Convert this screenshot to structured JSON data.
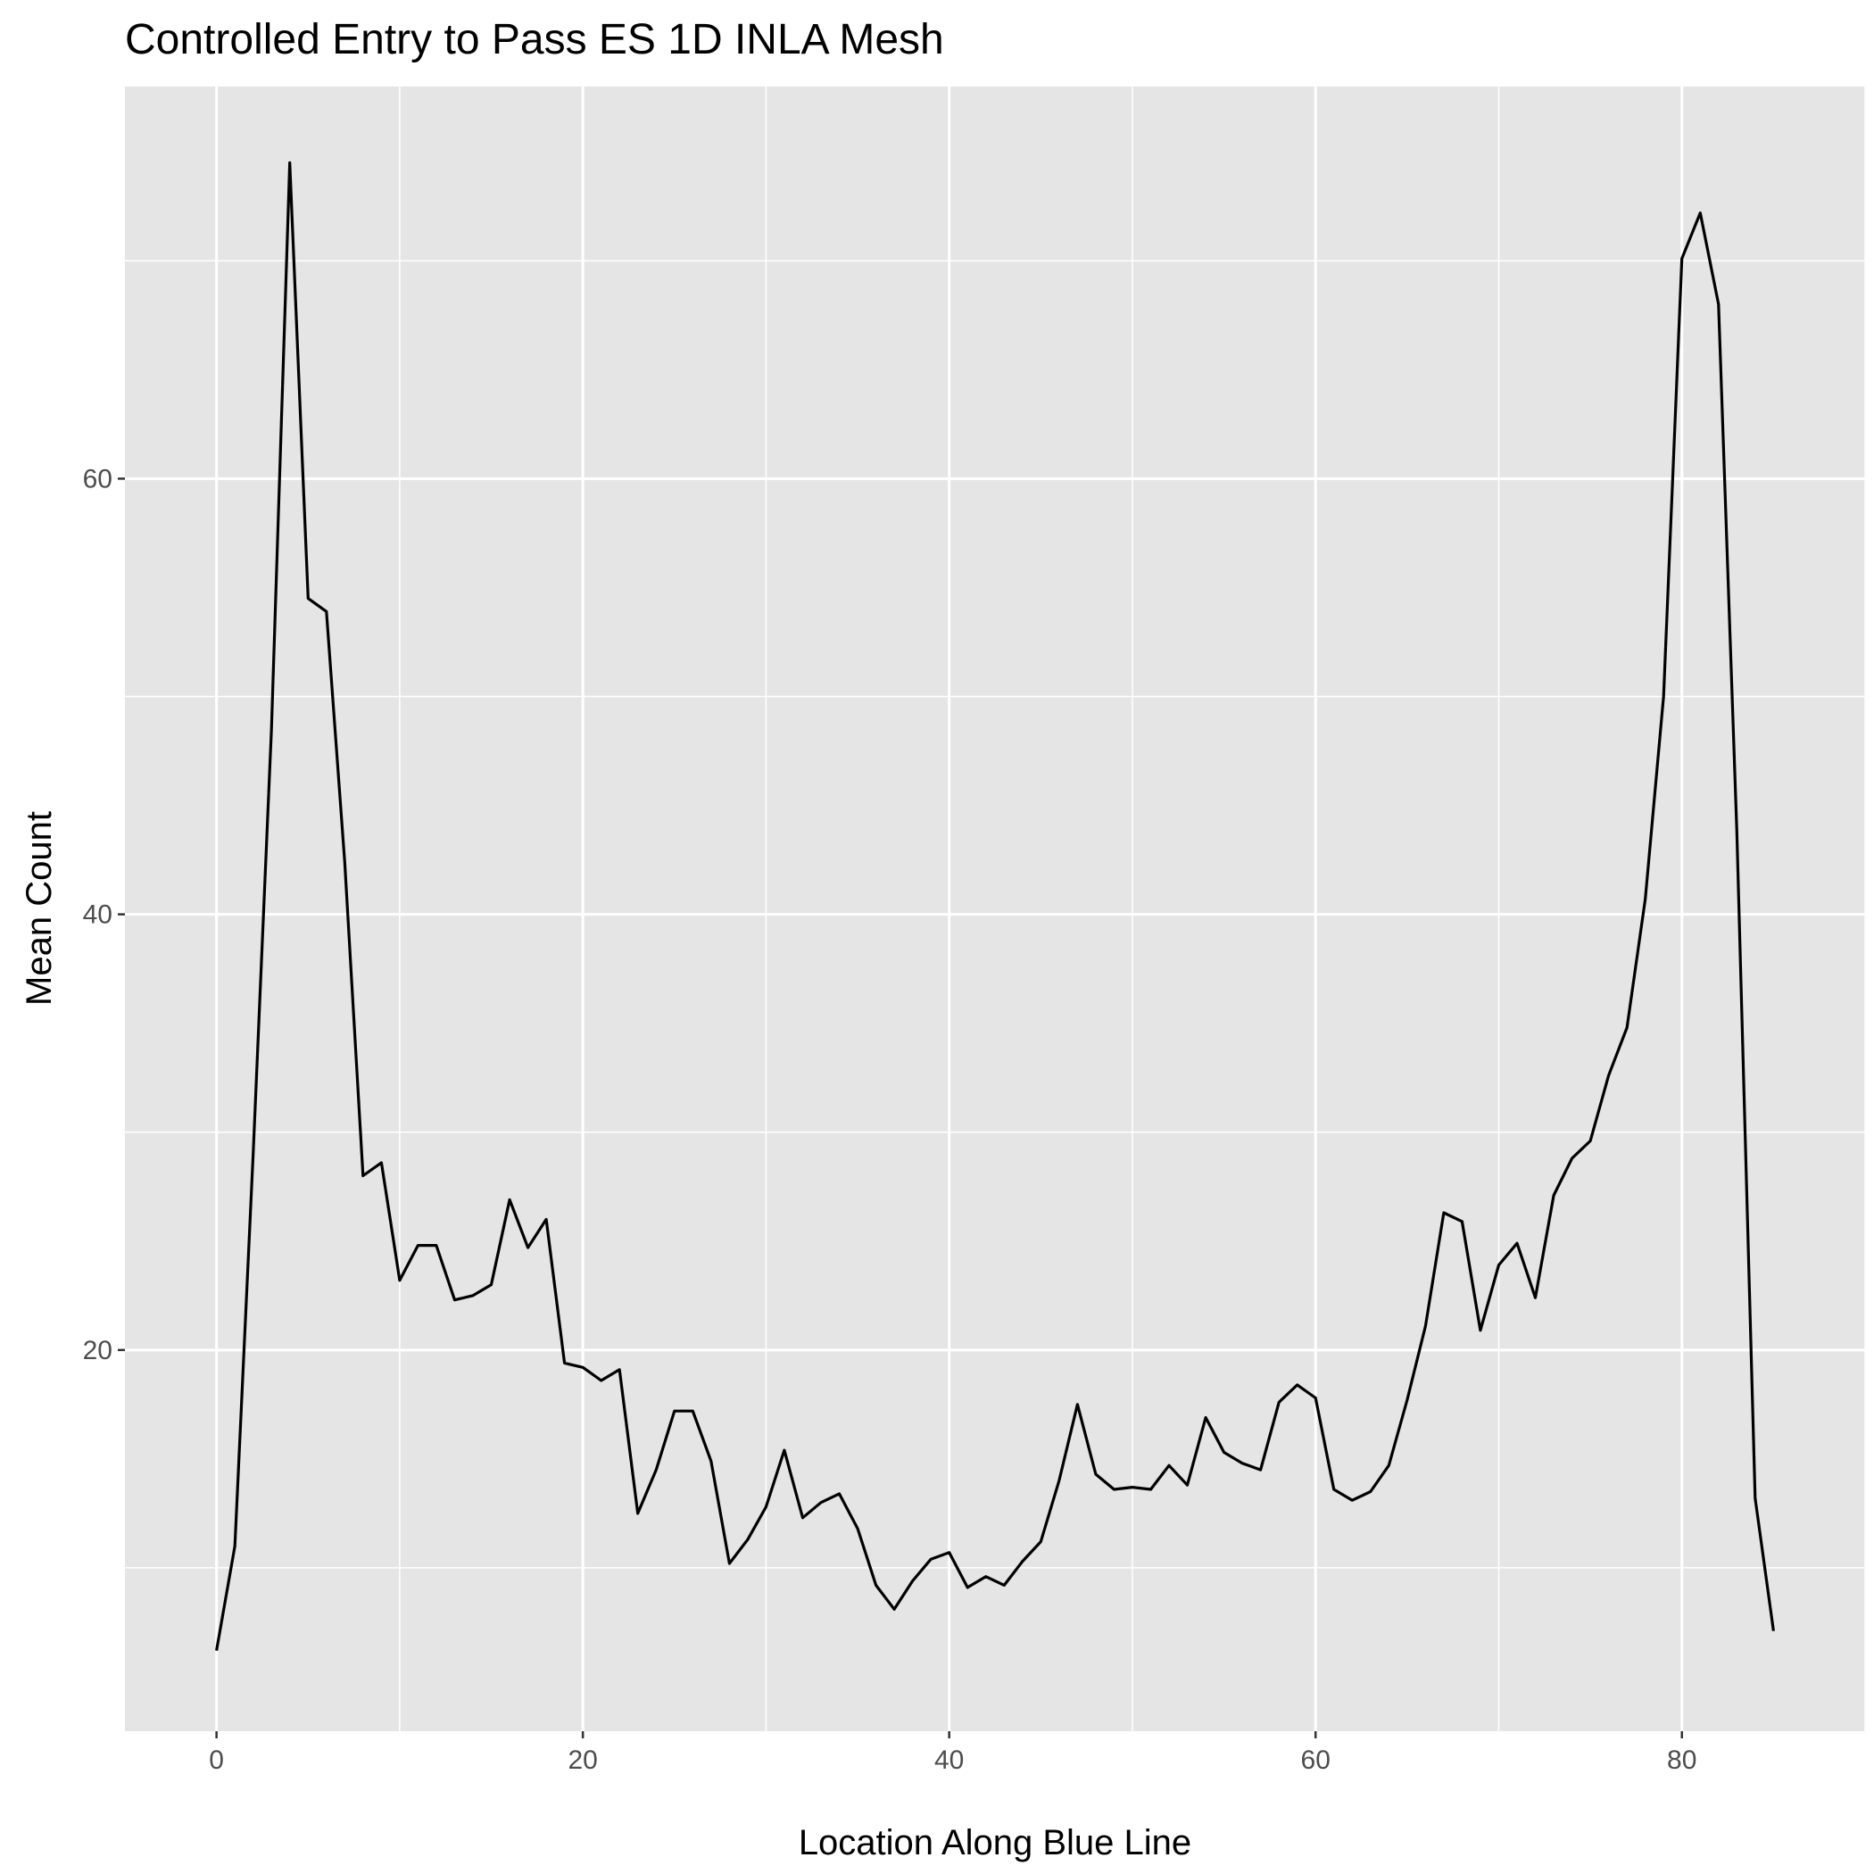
{
  "chart_data": {
    "type": "line",
    "title": "Controlled Entry to Pass ES 1D INLA Mesh",
    "xlabel": "Location Along Blue Line",
    "ylabel": "Mean Count",
    "xlim": [
      -5,
      90
    ],
    "ylim": [
      2.5,
      78
    ],
    "x_ticks": [
      0,
      20,
      40,
      60,
      80
    ],
    "x_tick_labels": [
      "0",
      "20",
      "40",
      "60",
      "80"
    ],
    "y_ticks": [
      20,
      40,
      60
    ],
    "y_tick_labels": [
      "20",
      "40",
      "60"
    ],
    "x_minor_ticks": [
      10,
      30,
      50,
      70,
      90
    ],
    "y_minor_ticks": [
      10,
      30,
      50,
      70
    ],
    "grid": true,
    "legend": "none",
    "colors": {
      "panel": "#e5e5e5",
      "grid": "#ffffff",
      "line": "#000000"
    },
    "series": [
      {
        "x": [
          0,
          1,
          2,
          3,
          4,
          5,
          6,
          7,
          8,
          9,
          10,
          11,
          12,
          13,
          14,
          15,
          16,
          17,
          18,
          19,
          20,
          21,
          22,
          23,
          24,
          25,
          26,
          27,
          28,
          29,
          30,
          31,
          32,
          33,
          34,
          35,
          36,
          37,
          38,
          39,
          40,
          41,
          42,
          43,
          44,
          45,
          46,
          47,
          48,
          49,
          50,
          51,
          52,
          53,
          54,
          55,
          56,
          57,
          58,
          59,
          60,
          61,
          62,
          63,
          64,
          65,
          66,
          67,
          68,
          69,
          70,
          71,
          72,
          73,
          74,
          75,
          76,
          77,
          78,
          79,
          80,
          81,
          82,
          83,
          84,
          85
        ],
        "y": [
          6.2,
          11.0,
          29.0,
          48.5,
          74.5,
          54.5,
          53.9,
          42.4,
          28.0,
          28.6,
          23.2,
          24.8,
          24.8,
          22.3,
          22.5,
          23.0,
          26.9,
          24.7,
          26.0,
          19.4,
          19.2,
          18.6,
          19.1,
          12.5,
          14.5,
          17.2,
          17.2,
          14.9,
          10.2,
          11.3,
          12.8,
          15.4,
          12.3,
          13.0,
          13.4,
          11.8,
          9.2,
          8.1,
          9.4,
          10.4,
          10.7,
          9.1,
          9.6,
          9.2,
          10.3,
          11.2,
          14.0,
          17.5,
          14.3,
          13.6,
          13.7,
          13.6,
          14.7,
          13.8,
          16.9,
          15.3,
          14.8,
          14.5,
          17.6,
          18.4,
          17.8,
          13.6,
          13.1,
          13.5,
          14.7,
          17.7,
          21.1,
          26.3,
          25.9,
          20.9,
          23.9,
          24.9,
          22.4,
          27.1,
          28.8,
          29.6,
          32.6,
          34.8,
          40.7,
          50.0,
          70.1,
          72.2,
          68.0,
          43.8,
          13.2,
          7.1
        ]
      }
    ]
  }
}
